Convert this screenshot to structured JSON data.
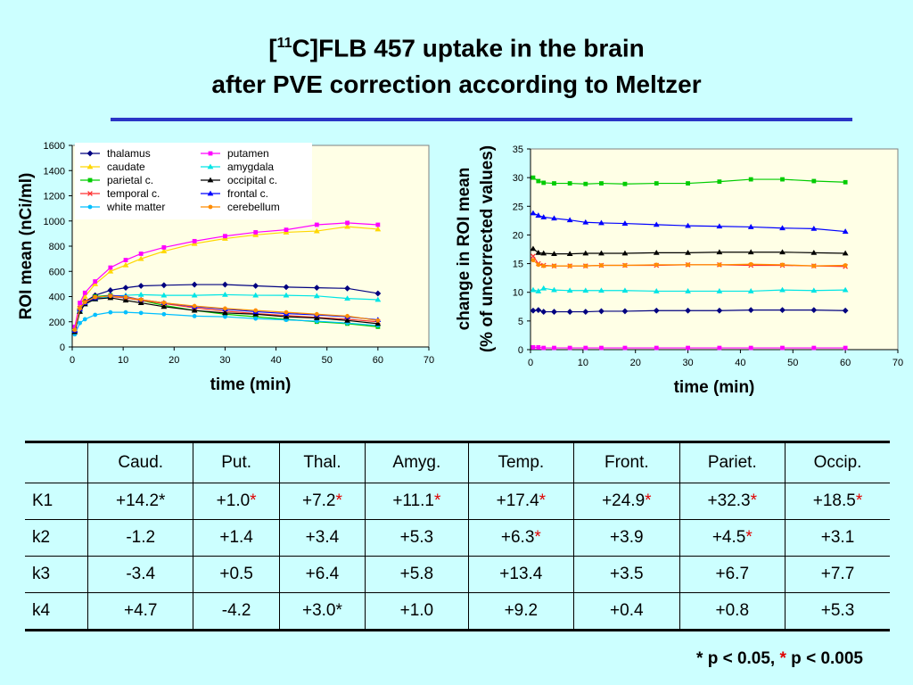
{
  "title": {
    "bracket_open": "[",
    "superscript": "11",
    "line1_rest": "C]FLB 457 uptake in the brain",
    "line2": "after PVE correction according to Meltzer"
  },
  "colors": {
    "background": "#ccffff",
    "plot_bg": "#ffffe6",
    "rule": "#2a35c6",
    "significance": "#e00000"
  },
  "chart_data": [
    {
      "type": "line",
      "xlabel": "time (min)",
      "ylabel": "ROI mean (nCi/ml)",
      "xlim": [
        0,
        70
      ],
      "ylim": [
        0,
        1600
      ],
      "x_ticks": [
        0,
        10,
        20,
        30,
        40,
        50,
        60,
        70
      ],
      "y_ticks": [
        0,
        200,
        400,
        600,
        800,
        1000,
        1200,
        1400,
        1600
      ],
      "legend_position": "top-left",
      "x": [
        0.5,
        1.5,
        2.5,
        4.5,
        7.5,
        10.5,
        13.5,
        18,
        24,
        30,
        36,
        42,
        48,
        54,
        60
      ],
      "series": [
        {
          "name": "thalamus",
          "color": "#000080",
          "marker": "diamond",
          "values": [
            120,
            300,
            360,
            410,
            450,
            470,
            485,
            490,
            495,
            495,
            485,
            475,
            470,
            465,
            425
          ]
        },
        {
          "name": "caudate",
          "color": "#ffd700",
          "marker": "triangle",
          "values": [
            150,
            330,
            400,
            500,
            600,
            650,
            700,
            760,
            820,
            860,
            890,
            910,
            920,
            955,
            935
          ]
        },
        {
          "name": "parietal c.",
          "color": "#00cc00",
          "marker": "square",
          "values": [
            130,
            290,
            350,
            400,
            410,
            390,
            370,
            330,
            290,
            260,
            240,
            220,
            200,
            185,
            160
          ]
        },
        {
          "name": "temporal c.",
          "color": "#ff3030",
          "marker": "x",
          "values": [
            140,
            310,
            360,
            390,
            400,
            390,
            370,
            345,
            310,
            285,
            265,
            250,
            235,
            220,
            200
          ]
        },
        {
          "name": "white matter",
          "color": "#00bfff",
          "marker": "circle",
          "values": [
            100,
            190,
            220,
            255,
            275,
            275,
            270,
            260,
            245,
            240,
            225,
            215,
            205,
            190,
            170
          ]
        },
        {
          "name": "putamen",
          "color": "#ff00ff",
          "marker": "square",
          "values": [
            160,
            350,
            430,
            520,
            630,
            690,
            740,
            790,
            840,
            880,
            910,
            930,
            970,
            985,
            970
          ]
        },
        {
          "name": "amygdala",
          "color": "#00e5e5",
          "marker": "triangle",
          "values": [
            130,
            290,
            340,
            380,
            400,
            410,
            415,
            410,
            410,
            415,
            410,
            410,
            405,
            385,
            375
          ]
        },
        {
          "name": "occipital c.",
          "color": "#000000",
          "marker": "triangle",
          "values": [
            120,
            280,
            340,
            380,
            390,
            370,
            350,
            320,
            290,
            270,
            260,
            240,
            230,
            210,
            185
          ]
        },
        {
          "name": "frontal c.",
          "color": "#0000ff",
          "marker": "triangle",
          "values": [
            130,
            300,
            350,
            390,
            410,
            400,
            375,
            350,
            320,
            300,
            280,
            265,
            255,
            240,
            215
          ]
        },
        {
          "name": "cerebellum",
          "color": "#ff8c00",
          "marker": "circle",
          "values": [
            135,
            305,
            355,
            395,
            405,
            395,
            375,
            350,
            325,
            305,
            290,
            275,
            260,
            245,
            210
          ]
        }
      ]
    },
    {
      "type": "line",
      "xlabel": "time (min)",
      "ylabel_line1": "change in ROI mean",
      "ylabel_line2": "(% of uncorrected values)",
      "xlim": [
        0,
        70
      ],
      "ylim": [
        0,
        35
      ],
      "x_ticks": [
        0,
        10,
        20,
        30,
        40,
        50,
        60,
        70
      ],
      "y_ticks": [
        0,
        5,
        10,
        15,
        20,
        25,
        30,
        35
      ],
      "x": [
        0.5,
        1.5,
        2.5,
        4.5,
        7.5,
        10.5,
        13.5,
        18,
        24,
        30,
        36,
        42,
        48,
        54,
        60
      ],
      "series": [
        {
          "color": "#00cc00",
          "marker": "square",
          "values": [
            30.0,
            29.4,
            29.1,
            29.0,
            29.0,
            28.9,
            29.0,
            28.9,
            29.0,
            29.0,
            29.3,
            29.7,
            29.7,
            29.4,
            29.2
          ]
        },
        {
          "color": "#0000ff",
          "marker": "triangle",
          "values": [
            23.8,
            23.4,
            23.1,
            22.9,
            22.6,
            22.2,
            22.1,
            22.0,
            21.8,
            21.6,
            21.5,
            21.4,
            21.2,
            21.1,
            20.6
          ]
        },
        {
          "color": "#000000",
          "marker": "triangle",
          "values": [
            17.6,
            16.9,
            16.8,
            16.7,
            16.7,
            16.8,
            16.8,
            16.8,
            16.9,
            16.9,
            17.0,
            17.0,
            17.0,
            16.9,
            16.8
          ]
        },
        {
          "color": "#ff3030",
          "marker": "x",
          "values": [
            16.3,
            15.0,
            14.7,
            14.6,
            14.6,
            14.6,
            14.7,
            14.7,
            14.7,
            14.8,
            14.8,
            14.7,
            14.7,
            14.6,
            14.5
          ]
        },
        {
          "color": "#ff8c00",
          "marker": "circle",
          "values": [
            15.6,
            14.8,
            14.6,
            14.6,
            14.6,
            14.6,
            14.7,
            14.7,
            14.8,
            14.8,
            14.8,
            14.9,
            14.8,
            14.6,
            14.7
          ]
        },
        {
          "color": "#00e5e5",
          "marker": "triangle",
          "values": [
            10.4,
            10.2,
            10.7,
            10.4,
            10.3,
            10.3,
            10.3,
            10.3,
            10.2,
            10.2,
            10.2,
            10.2,
            10.4,
            10.3,
            10.4
          ]
        },
        {
          "color": "#000080",
          "marker": "diamond",
          "values": [
            6.8,
            6.9,
            6.6,
            6.6,
            6.6,
            6.6,
            6.7,
            6.7,
            6.8,
            6.8,
            6.8,
            6.9,
            6.9,
            6.9,
            6.8
          ]
        },
        {
          "color": "#ff00ff",
          "marker": "square",
          "values": [
            0.4,
            0.4,
            0.3,
            0.3,
            0.3,
            0.3,
            0.3,
            0.3,
            0.3,
            0.3,
            0.3,
            0.3,
            0.3,
            0.3,
            0.3
          ]
        }
      ]
    }
  ],
  "table": {
    "headers": [
      "",
      "Caud.",
      "Put.",
      "Thal.",
      "Amyg.",
      "Temp.",
      "Front.",
      "Pariet.",
      "Occip."
    ],
    "rows": [
      {
        "label": "K1",
        "cells": [
          {
            "v": "+14.2*",
            "mark": ""
          },
          {
            "v": "+1.0",
            "mark": "*"
          },
          {
            "v": "+7.2",
            "mark": "*"
          },
          {
            "v": "+11.1",
            "mark": "*"
          },
          {
            "v": "+17.4",
            "mark": "*"
          },
          {
            "v": "+24.9",
            "mark": "*"
          },
          {
            "v": "+32.3",
            "mark": "*"
          },
          {
            "v": "+18.5",
            "mark": "*"
          }
        ]
      },
      {
        "label": "k2",
        "cells": [
          {
            "v": "-1.2",
            "mark": ""
          },
          {
            "v": "+1.4",
            "mark": ""
          },
          {
            "v": "+3.4",
            "mark": ""
          },
          {
            "v": "+5.3",
            "mark": ""
          },
          {
            "v": "+6.3",
            "mark": "*"
          },
          {
            "v": "+3.9",
            "mark": ""
          },
          {
            "v": "+4.5",
            "mark": "*"
          },
          {
            "v": "+3.1",
            "mark": ""
          }
        ]
      },
      {
        "label": "k3",
        "cells": [
          {
            "v": "-3.4",
            "mark": ""
          },
          {
            "v": "+0.5",
            "mark": ""
          },
          {
            "v": "+6.4",
            "mark": ""
          },
          {
            "v": "+5.8",
            "mark": ""
          },
          {
            "v": "+13.4",
            "mark": ""
          },
          {
            "v": "+3.5",
            "mark": ""
          },
          {
            "v": "+6.7",
            "mark": ""
          },
          {
            "v": "+7.7",
            "mark": ""
          }
        ]
      },
      {
        "label": "k4",
        "cells": [
          {
            "v": "+4.7",
            "mark": ""
          },
          {
            "v": "-4.2",
            "mark": ""
          },
          {
            "v": "+3.0*",
            "mark": ""
          },
          {
            "v": "+1.0",
            "mark": ""
          },
          {
            "v": "+9.2",
            "mark": ""
          },
          {
            "v": "+0.4",
            "mark": ""
          },
          {
            "v": "+0.8",
            "mark": ""
          },
          {
            "v": "+5.3",
            "mark": ""
          }
        ]
      }
    ]
  },
  "footnote": {
    "black_star": "* p < 0.05, ",
    "red_star": "*",
    "rest": " p < 0.005"
  }
}
